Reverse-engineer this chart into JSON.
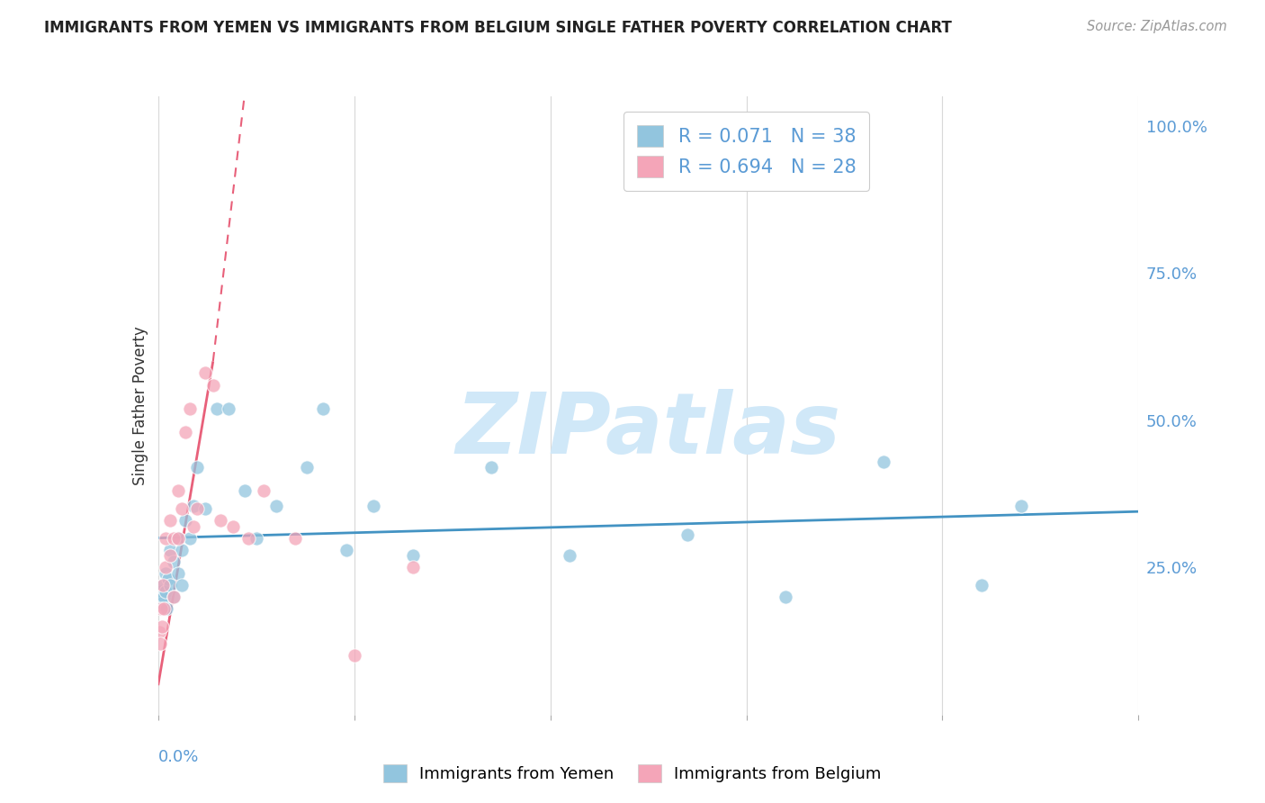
{
  "title": "IMMIGRANTS FROM YEMEN VS IMMIGRANTS FROM BELGIUM SINGLE FATHER POVERTY CORRELATION CHART",
  "source": "Source: ZipAtlas.com",
  "ylabel": "Single Father Poverty",
  "right_ytick_vals": [
    1.0,
    0.75,
    0.5,
    0.25
  ],
  "right_ytick_labels": [
    "100.0%",
    "75.0%",
    "50.0%",
    "25.0%"
  ],
  "legend1_label": "R = 0.071   N = 38",
  "legend2_label": "R = 0.694   N = 28",
  "yemen_color": "#92c5de",
  "belgium_color": "#f4a5b8",
  "trendline_yemen_color": "#4393c3",
  "trendline_belgium_color": "#e8607a",
  "background_color": "#ffffff",
  "watermark_text": "ZIPatlas",
  "watermark_color": "#d0e8f8",
  "xlim": [
    0.0,
    0.25
  ],
  "ylim": [
    0.0,
    1.05
  ],
  "grid_color": "#d8d8d8",
  "label_color": "#5b9bd5",
  "x_yemen": [
    0.0008,
    0.001,
    0.0012,
    0.0015,
    0.0018,
    0.002,
    0.0022,
    0.0025,
    0.003,
    0.003,
    0.004,
    0.004,
    0.005,
    0.005,
    0.006,
    0.006,
    0.007,
    0.008,
    0.009,
    0.01,
    0.012,
    0.015,
    0.018,
    0.022,
    0.025,
    0.03,
    0.038,
    0.042,
    0.048,
    0.055,
    0.065,
    0.085,
    0.105,
    0.135,
    0.16,
    0.185,
    0.21,
    0.22
  ],
  "y_yemen": [
    0.21,
    0.19,
    0.22,
    0.2,
    0.24,
    0.21,
    0.18,
    0.23,
    0.28,
    0.22,
    0.26,
    0.2,
    0.3,
    0.24,
    0.28,
    0.22,
    0.33,
    0.3,
    0.355,
    0.42,
    0.35,
    0.52,
    0.52,
    0.38,
    0.3,
    0.355,
    0.42,
    0.52,
    0.28,
    0.355,
    0.27,
    0.42,
    0.27,
    0.305,
    0.2,
    0.43,
    0.22,
    0.355
  ],
  "x_belgium": [
    0.0003,
    0.0005,
    0.0008,
    0.001,
    0.0012,
    0.0015,
    0.002,
    0.002,
    0.003,
    0.003,
    0.004,
    0.004,
    0.005,
    0.005,
    0.006,
    0.007,
    0.008,
    0.009,
    0.01,
    0.012,
    0.014,
    0.016,
    0.019,
    0.023,
    0.027,
    0.035,
    0.05,
    0.065
  ],
  "y_belgium": [
    0.14,
    0.12,
    0.18,
    0.15,
    0.22,
    0.18,
    0.25,
    0.3,
    0.27,
    0.33,
    0.3,
    0.2,
    0.38,
    0.3,
    0.35,
    0.48,
    0.52,
    0.32,
    0.35,
    0.58,
    0.56,
    0.33,
    0.32,
    0.3,
    0.38,
    0.3,
    0.1,
    0.25
  ],
  "trend_yemen_x0": 0.0,
  "trend_yemen_x1": 0.25,
  "trend_yemen_y0": 0.3,
  "trend_yemen_y1": 0.345,
  "trend_belgium_solid_x0": 0.0,
  "trend_belgium_solid_x1": 0.014,
  "trend_belgium_solid_y0": 0.05,
  "trend_belgium_solid_y1": 0.6,
  "trend_belgium_dash_x0": 0.014,
  "trend_belgium_dash_x1": 0.022,
  "trend_belgium_dash_y0": 0.6,
  "trend_belgium_dash_y1": 1.05
}
